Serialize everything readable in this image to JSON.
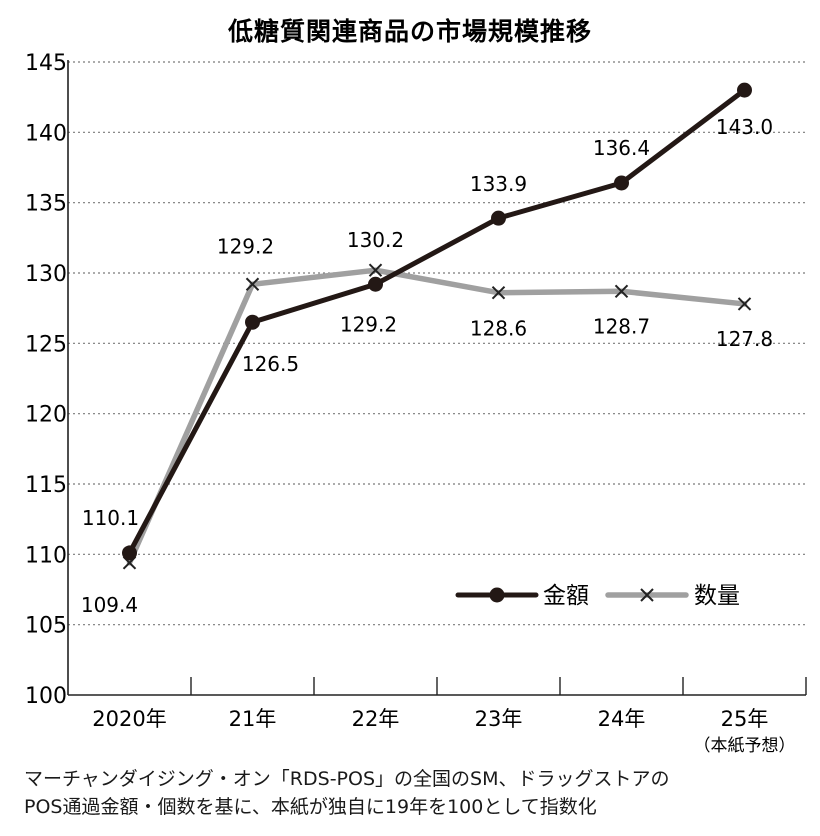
{
  "chart_data": {
    "type": "line",
    "title": "低糖質関連商品の市場規模推移",
    "categories": [
      "2020年",
      "21年",
      "22年",
      "23年",
      "24年",
      "25年"
    ],
    "category_sub": [
      "",
      "",
      "",
      "",
      "",
      "（本紙予想）"
    ],
    "ylim": [
      100,
      145
    ],
    "yticks": [
      100,
      105,
      110,
      115,
      120,
      125,
      130,
      135,
      140,
      145
    ],
    "grid": "horizontal dotted",
    "legend_position": "lower-right",
    "series": [
      {
        "name": "金額",
        "marker": "circle",
        "color": "#231815",
        "values": [
          110.1,
          126.5,
          129.2,
          133.9,
          136.4,
          143.0
        ],
        "labels": [
          "110.1",
          "126.5",
          "129.2",
          "133.9",
          "136.4",
          "143.0"
        ]
      },
      {
        "name": "数量",
        "marker": "x",
        "color": "#a0a0a0",
        "values": [
          109.4,
          129.2,
          130.2,
          128.6,
          128.7,
          127.8
        ],
        "labels": [
          "109.4",
          "129.2",
          "130.2",
          "128.6",
          "128.7",
          "127.8"
        ]
      }
    ]
  },
  "footnote": {
    "line1": "マーチャンダイジング・オン「RDS-POS」の全国のSM、ドラッグストアの",
    "line2": "POS通過金額・個数を基に、本紙が独自に19年を100として指数化"
  }
}
